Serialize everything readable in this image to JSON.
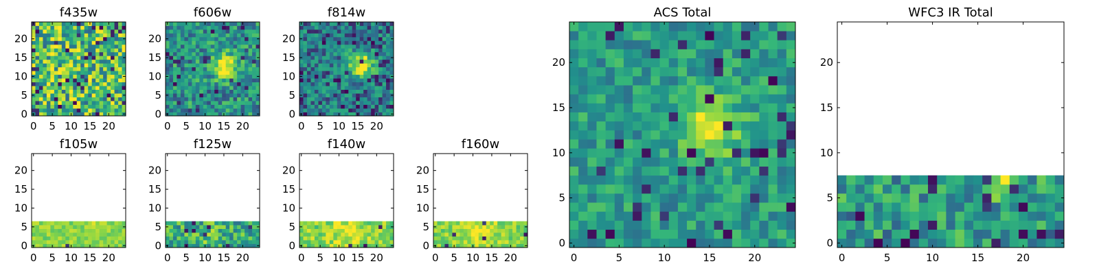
{
  "figure": {
    "background": "#ffffff"
  },
  "colormap": {
    "name": "viridis",
    "stops": [
      "#440154",
      "#31688e",
      "#21918c",
      "#35b779",
      "#90d743",
      "#fde725"
    ]
  },
  "chart_data": [
    {
      "type": "heatmap",
      "title": "f435w",
      "grid_size": 25,
      "xticks": [
        0,
        5,
        10,
        15,
        20
      ],
      "yticks": [
        0,
        5,
        10,
        15,
        20
      ],
      "valid_rows": 25,
      "seed": 11,
      "noise": 0.85,
      "base": 0.62,
      "blob": {
        "cx": 14,
        "cy": 13,
        "amp": 0.0,
        "sigma": 2.5
      },
      "dark_frac": 0.08
    },
    {
      "type": "heatmap",
      "title": "f606w",
      "grid_size": 25,
      "xticks": [
        0,
        5,
        10,
        15,
        20
      ],
      "yticks": [
        0,
        5,
        10,
        15,
        20
      ],
      "valid_rows": 25,
      "seed": 23,
      "noise": 0.55,
      "base": 0.42,
      "blob": {
        "cx": 15,
        "cy": 13,
        "amp": 0.65,
        "sigma": 2.2
      },
      "dark_frac": 0.04
    },
    {
      "type": "heatmap",
      "title": "f814w",
      "grid_size": 25,
      "xticks": [
        0,
        5,
        10,
        15,
        20
      ],
      "yticks": [
        0,
        5,
        10,
        15,
        20
      ],
      "valid_rows": 25,
      "seed": 37,
      "noise": 0.5,
      "base": 0.32,
      "blob": {
        "cx": 16,
        "cy": 13,
        "amp": 0.75,
        "sigma": 2.3
      },
      "dark_frac": 0.08
    },
    {
      "type": "heatmap",
      "title": "f105w",
      "grid_size": 25,
      "xticks": [
        0,
        5,
        10,
        15,
        20
      ],
      "yticks": [
        0,
        5,
        10,
        15,
        20
      ],
      "valid_rows": 7,
      "seed": 41,
      "noise": 0.25,
      "base": 0.78,
      "blob": {
        "cx": 18,
        "cy": 6,
        "amp": 0.15,
        "sigma": 1.5
      },
      "dark_frac": 0.01
    },
    {
      "type": "heatmap",
      "title": "f125w",
      "grid_size": 25,
      "xticks": [
        0,
        5,
        10,
        15,
        20
      ],
      "yticks": [
        0,
        5,
        10,
        15,
        20
      ],
      "valid_rows": 7,
      "seed": 53,
      "noise": 0.6,
      "base": 0.55,
      "blob": {
        "cx": 12,
        "cy": 3,
        "amp": 0.1,
        "sigma": 2
      },
      "dark_frac": 0.07
    },
    {
      "type": "heatmap",
      "title": "f140w",
      "grid_size": 25,
      "xticks": [
        0,
        5,
        10,
        15,
        20
      ],
      "yticks": [
        0,
        5,
        10,
        15,
        20
      ],
      "valid_rows": 7,
      "seed": 67,
      "noise": 0.35,
      "base": 0.78,
      "blob": {
        "cx": 12,
        "cy": 4,
        "amp": 0.15,
        "sigma": 3
      },
      "dark_frac": 0.02
    },
    {
      "type": "heatmap",
      "title": "f160w",
      "grid_size": 25,
      "xticks": [
        0,
        5,
        10,
        15,
        20
      ],
      "yticks": [
        0,
        5,
        10,
        15,
        20
      ],
      "valid_rows": 7,
      "seed": 79,
      "noise": 0.3,
      "base": 0.78,
      "blob": {
        "cx": 12,
        "cy": 4,
        "amp": 0.15,
        "sigma": 3
      },
      "dark_frac": 0.02
    },
    {
      "type": "heatmap",
      "title": "ACS Total",
      "grid_size": 25,
      "xticks": [
        0,
        5,
        10,
        15,
        20
      ],
      "yticks": [
        0,
        5,
        10,
        15,
        20
      ],
      "valid_rows": 25,
      "seed": 97,
      "noise": 0.42,
      "base": 0.45,
      "blob": {
        "cx": 15,
        "cy": 13,
        "amp": 0.6,
        "sigma": 2.2
      },
      "dark_frac": 0.06
    },
    {
      "type": "heatmap",
      "title": "WFC3 IR Total",
      "grid_size": 25,
      "xticks": [
        0,
        5,
        10,
        15,
        20
      ],
      "yticks": [
        0,
        5,
        10,
        15,
        20
      ],
      "valid_rows": 8,
      "seed": 113,
      "noise": 0.55,
      "base": 0.45,
      "blob": {
        "cx": 18,
        "cy": 7,
        "amp": 0.4,
        "sigma": 1.2
      },
      "dark_frac": 0.08
    }
  ]
}
